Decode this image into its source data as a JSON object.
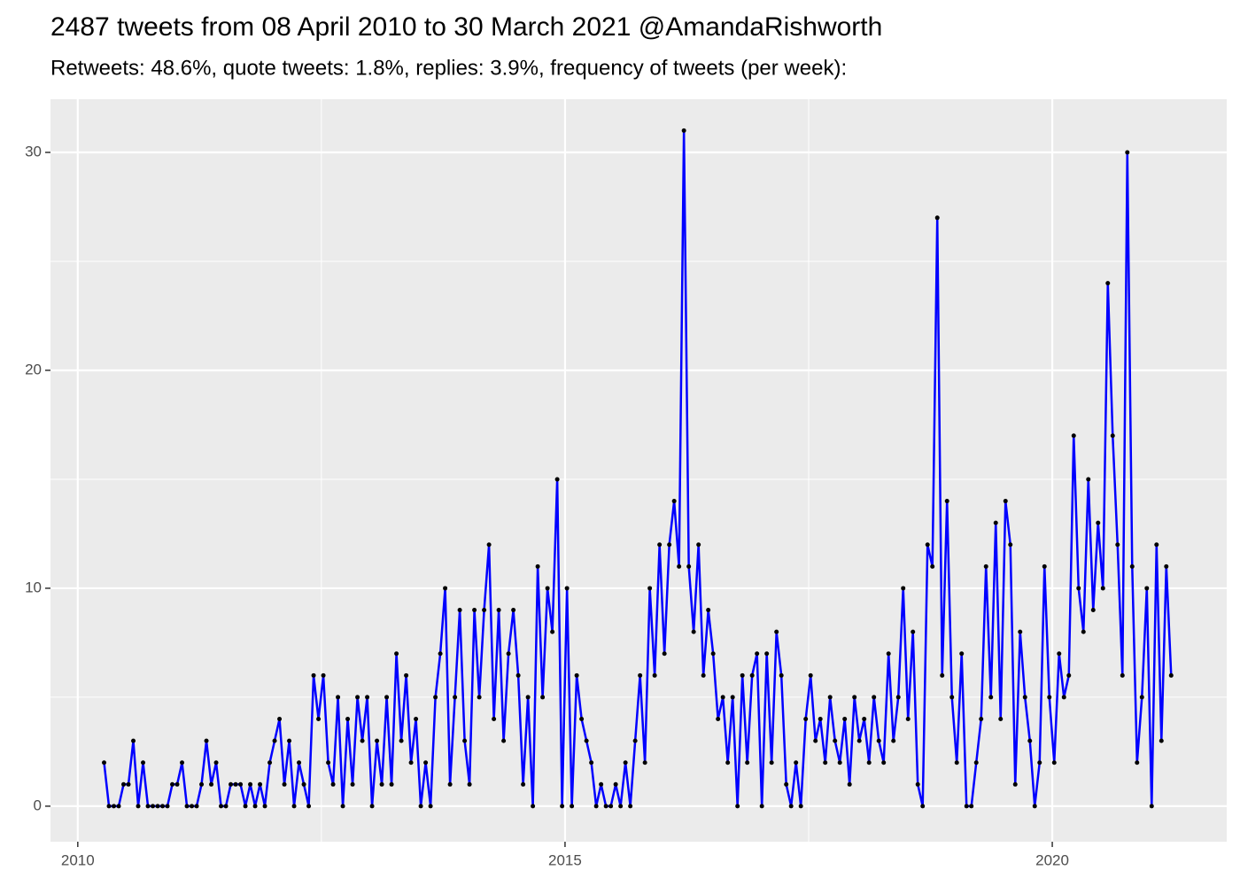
{
  "chart_data": {
    "type": "line",
    "title": "2487 tweets from 08 April 2010 to 30 March 2021 @AmandaRishworth",
    "subtitle": "Retweets: 48.6%, quote tweets: 1.8%, replies: 3.9%, frequency of tweets (per week):",
    "xlim": [
      2009.72,
      2021.79
    ],
    "xticks": [
      2010,
      2015,
      2020
    ],
    "xminor": [
      2012.5,
      2017.5
    ],
    "ylim": [
      -1.63,
      32.44
    ],
    "yticks": [
      0,
      10,
      20,
      30
    ],
    "yminor": [
      5,
      15,
      25
    ],
    "grid": true,
    "line_color": "#0000ff",
    "point_color": "#000000",
    "x": [
      2010.27,
      2010.32,
      2010.37,
      2010.42,
      2010.47,
      2010.52,
      2010.57,
      2010.62,
      2010.67,
      2010.72,
      2010.77,
      2010.82,
      2010.87,
      2010.92,
      2010.97,
      2011.02,
      2011.07,
      2011.12,
      2011.17,
      2011.22,
      2011.27,
      2011.32,
      2011.37,
      2011.42,
      2011.47,
      2011.52,
      2011.57,
      2011.62,
      2011.67,
      2011.72,
      2011.77,
      2011.82,
      2011.87,
      2011.92,
      2011.97,
      2012.02,
      2012.07,
      2012.12,
      2012.17,
      2012.22,
      2012.27,
      2012.32,
      2012.37,
      2012.42,
      2012.47,
      2012.52,
      2012.57,
      2012.62,
      2012.67,
      2012.72,
      2012.77,
      2012.82,
      2012.87,
      2012.92,
      2012.97,
      2013.02,
      2013.07,
      2013.12,
      2013.17,
      2013.22,
      2013.27,
      2013.32,
      2013.37,
      2013.42,
      2013.47,
      2013.52,
      2013.57,
      2013.62,
      2013.67,
      2013.72,
      2013.77,
      2013.82,
      2013.87,
      2013.92,
      2013.97,
      2014.02,
      2014.07,
      2014.12,
      2014.17,
      2014.22,
      2014.27,
      2014.32,
      2014.37,
      2014.42,
      2014.47,
      2014.52,
      2014.57,
      2014.62,
      2014.67,
      2014.72,
      2014.77,
      2014.82,
      2014.87,
      2014.92,
      2014.97,
      2015.02,
      2015.07,
      2015.12,
      2015.17,
      2015.22,
      2015.27,
      2015.32,
      2015.37,
      2015.42,
      2015.47,
      2015.52,
      2015.57,
      2015.62,
      2015.67,
      2015.72,
      2015.77,
      2015.82,
      2015.87,
      2015.92,
      2015.97,
      2016.02,
      2016.07,
      2016.12,
      2016.17,
      2016.22,
      2016.27,
      2016.32,
      2016.37,
      2016.42,
      2016.47,
      2016.52,
      2016.57,
      2016.62,
      2016.67,
      2016.72,
      2016.77,
      2016.82,
      2016.87,
      2016.92,
      2016.97,
      2017.02,
      2017.07,
      2017.12,
      2017.17,
      2017.22,
      2017.27,
      2017.32,
      2017.37,
      2017.42,
      2017.47,
      2017.52,
      2017.57,
      2017.62,
      2017.67,
      2017.72,
      2017.77,
      2017.82,
      2017.87,
      2017.92,
      2017.97,
      2018.02,
      2018.07,
      2018.12,
      2018.17,
      2018.22,
      2018.27,
      2018.32,
      2018.37,
      2018.42,
      2018.47,
      2018.52,
      2018.57,
      2018.62,
      2018.67,
      2018.72,
      2018.77,
      2018.82,
      2018.87,
      2018.92,
      2018.97,
      2019.02,
      2019.07,
      2019.12,
      2019.17,
      2019.22,
      2019.27,
      2019.32,
      2019.37,
      2019.42,
      2019.47,
      2019.52,
      2019.57,
      2019.62,
      2019.67,
      2019.72,
      2019.77,
      2019.82,
      2019.87,
      2019.92,
      2019.97,
      2020.02,
      2020.07,
      2020.12,
      2020.17,
      2020.22,
      2020.27,
      2020.32,
      2020.37,
      2020.42,
      2020.47,
      2020.52,
      2020.57,
      2020.62,
      2020.67,
      2020.72,
      2020.77,
      2020.82,
      2020.87,
      2020.92,
      2020.97,
      2021.02,
      2021.07,
      2021.12,
      2021.17,
      2021.22
    ],
    "values": [
      2,
      0,
      0,
      0,
      1,
      1,
      3,
      0,
      2,
      0,
      0,
      0,
      0,
      0,
      1,
      1,
      2,
      0,
      0,
      0,
      1,
      3,
      1,
      2,
      0,
      0,
      1,
      1,
      1,
      0,
      1,
      0,
      1,
      0,
      2,
      3,
      4,
      1,
      3,
      0,
      2,
      1,
      0,
      6,
      4,
      6,
      2,
      1,
      5,
      0,
      4,
      1,
      5,
      3,
      5,
      0,
      3,
      1,
      5,
      1,
      7,
      3,
      6,
      2,
      4,
      0,
      2,
      0,
      5,
      7,
      10,
      1,
      5,
      9,
      3,
      1,
      9,
      5,
      9,
      12,
      4,
      9,
      3,
      7,
      9,
      6,
      1,
      5,
      0,
      11,
      5,
      10,
      8,
      15,
      0,
      10,
      0,
      6,
      4,
      3,
      2,
      0,
      1,
      0,
      0,
      1,
      0,
      2,
      0,
      3,
      6,
      2,
      10,
      6,
      12,
      7,
      12,
      14,
      11,
      31,
      11,
      8,
      12,
      6,
      9,
      7,
      4,
      5,
      2,
      5,
      0,
      6,
      2,
      6,
      7,
      0,
      7,
      2,
      8,
      6,
      1,
      0,
      2,
      0,
      4,
      6,
      3,
      4,
      2,
      5,
      3,
      2,
      4,
      1,
      5,
      3,
      4,
      2,
      5,
      3,
      2,
      7,
      3,
      5,
      10,
      4,
      8,
      1,
      0,
      12,
      11,
      27,
      6,
      14,
      5,
      2,
      7,
      0,
      0,
      2,
      4,
      11,
      5,
      13,
      4,
      14,
      12,
      1,
      8,
      5,
      3,
      0,
      2,
      11,
      5,
      2,
      7,
      5,
      6,
      17,
      10,
      8,
      15,
      9,
      13,
      10,
      24,
      17,
      12,
      6,
      30,
      11,
      2,
      5,
      10,
      0,
      12,
      3,
      11,
      6
    ]
  }
}
